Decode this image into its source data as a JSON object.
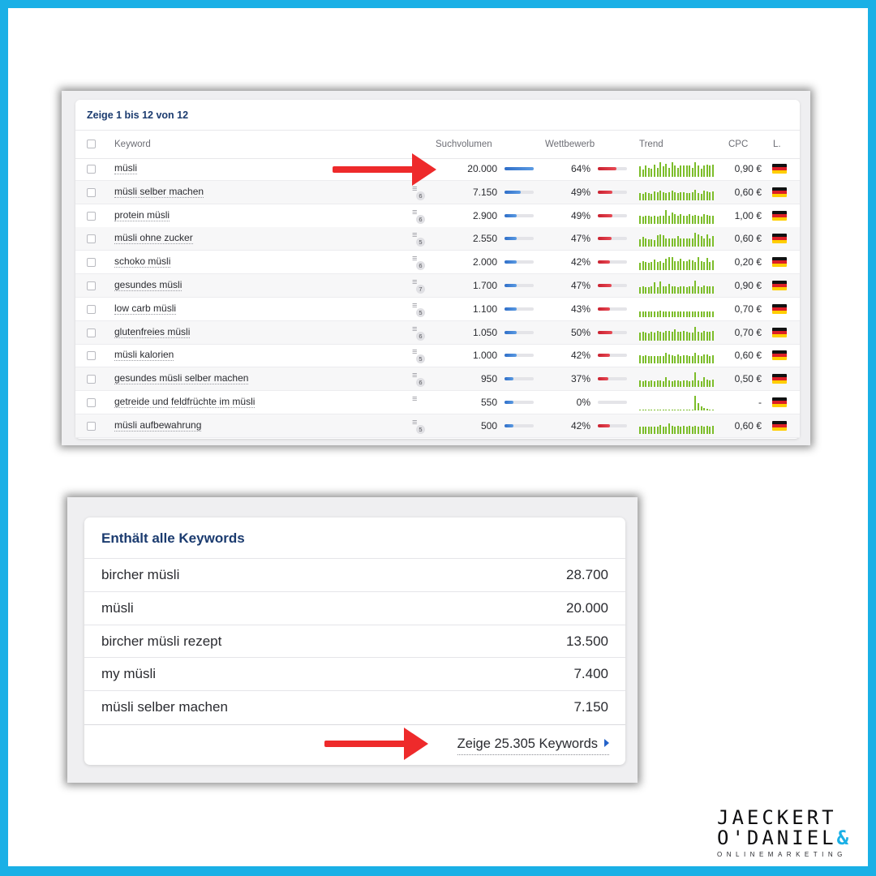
{
  "top_table": {
    "title": "Zeige 1 bis 12 von 12",
    "columns": {
      "keyword": "Keyword",
      "volume": "Suchvolumen",
      "competition": "Wettbewerb",
      "trend": "Trend",
      "cpc": "CPC",
      "lang": "L."
    },
    "rows": [
      {
        "keyword": "müsli",
        "serp_badge": "",
        "volume": "20.000",
        "volume_fraction": 1.0,
        "competition": "64%",
        "competition_fraction": 0.64,
        "cpc": "0,90 €",
        "trend": [
          0.7,
          0.5,
          0.75,
          0.6,
          0.55,
          0.8,
          0.6,
          0.95,
          0.7,
          0.85,
          0.6,
          0.95,
          0.75,
          0.6,
          0.75,
          0.75,
          0.75,
          0.75,
          0.6,
          0.95,
          0.75,
          0.55,
          0.75,
          0.8,
          0.75,
          0.8
        ]
      },
      {
        "keyword": "müsli selber machen",
        "serp_badge": "6",
        "volume": "7.150",
        "volume_fraction": 0.55,
        "competition": "49%",
        "competition_fraction": 0.49,
        "cpc": "0,60 €",
        "trend": [
          0.45,
          0.4,
          0.5,
          0.45,
          0.4,
          0.55,
          0.5,
          0.6,
          0.5,
          0.45,
          0.5,
          0.6,
          0.5,
          0.45,
          0.5,
          0.5,
          0.45,
          0.45,
          0.5,
          0.7,
          0.45,
          0.4,
          0.6,
          0.55,
          0.5,
          0.55
        ]
      },
      {
        "keyword": "protein müsli",
        "serp_badge": "6",
        "volume": "2.900",
        "volume_fraction": 0.42,
        "competition": "49%",
        "competition_fraction": 0.49,
        "cpc": "1,00 €",
        "trend": [
          0.5,
          0.45,
          0.5,
          0.5,
          0.45,
          0.5,
          0.45,
          0.5,
          0.5,
          0.85,
          0.5,
          0.7,
          0.6,
          0.5,
          0.6,
          0.5,
          0.5,
          0.6,
          0.5,
          0.55,
          0.5,
          0.45,
          0.6,
          0.55,
          0.5,
          0.5
        ]
      },
      {
        "keyword": "müsli ohne zucker",
        "serp_badge": "5",
        "volume": "2.550",
        "volume_fraction": 0.42,
        "competition": "47%",
        "competition_fraction": 0.47,
        "cpc": "0,60 €",
        "trend": [
          0.5,
          0.65,
          0.55,
          0.5,
          0.5,
          0.45,
          0.75,
          0.8,
          0.75,
          0.55,
          0.55,
          0.55,
          0.55,
          0.7,
          0.55,
          0.55,
          0.55,
          0.55,
          0.55,
          0.9,
          0.8,
          0.7,
          0.55,
          0.8,
          0.55,
          0.7
        ]
      },
      {
        "keyword": "schoko müsli",
        "serp_badge": "6",
        "volume": "2.000",
        "volume_fraction": 0.42,
        "competition": "42%",
        "competition_fraction": 0.42,
        "cpc": "0,20 €",
        "trend": [
          0.5,
          0.6,
          0.55,
          0.5,
          0.55,
          0.7,
          0.55,
          0.6,
          0.5,
          0.75,
          0.85,
          0.85,
          0.6,
          0.6,
          0.75,
          0.6,
          0.6,
          0.7,
          0.65,
          0.55,
          0.85,
          0.6,
          0.55,
          0.8,
          0.55,
          0.65
        ]
      },
      {
        "keyword": "gesundes müsli",
        "serp_badge": "7",
        "volume": "1.700",
        "volume_fraction": 0.42,
        "competition": "47%",
        "competition_fraction": 0.47,
        "cpc": "0,90 €",
        "trend": [
          0.4,
          0.45,
          0.4,
          0.4,
          0.45,
          0.75,
          0.4,
          0.8,
          0.45,
          0.45,
          0.65,
          0.45,
          0.45,
          0.4,
          0.45,
          0.45,
          0.4,
          0.45,
          0.45,
          0.85,
          0.45,
          0.4,
          0.55,
          0.5,
          0.45,
          0.45
        ]
      },
      {
        "keyword": "low carb müsli",
        "serp_badge": "5",
        "volume": "1.100",
        "volume_fraction": 0.42,
        "competition": "43%",
        "competition_fraction": 0.43,
        "cpc": "0,70 €",
        "trend": [
          0.35,
          0.35,
          0.35,
          0.35,
          0.35,
          0.35,
          0.35,
          0.4,
          0.35,
          0.35,
          0.35,
          0.35,
          0.35,
          0.35,
          0.35,
          0.35,
          0.35,
          0.35,
          0.35,
          0.35,
          0.35,
          0.35,
          0.35,
          0.35,
          0.35,
          0.35
        ]
      },
      {
        "keyword": "glutenfreies müsli",
        "serp_badge": "6",
        "volume": "1.050",
        "volume_fraction": 0.42,
        "competition": "50%",
        "competition_fraction": 0.5,
        "cpc": "0,70 €",
        "trend": [
          0.5,
          0.55,
          0.5,
          0.45,
          0.55,
          0.5,
          0.6,
          0.55,
          0.5,
          0.6,
          0.6,
          0.55,
          0.7,
          0.55,
          0.55,
          0.6,
          0.55,
          0.5,
          0.5,
          0.85,
          0.55,
          0.5,
          0.6,
          0.55,
          0.55,
          0.6
        ]
      },
      {
        "keyword": "müsli kalorien",
        "serp_badge": "5",
        "volume": "1.000",
        "volume_fraction": 0.42,
        "competition": "42%",
        "competition_fraction": 0.42,
        "cpc": "0,60 €",
        "trend": [
          0.55,
          0.5,
          0.55,
          0.5,
          0.5,
          0.5,
          0.5,
          0.5,
          0.5,
          0.7,
          0.6,
          0.55,
          0.5,
          0.6,
          0.5,
          0.55,
          0.55,
          0.5,
          0.5,
          0.7,
          0.55,
          0.5,
          0.6,
          0.6,
          0.5,
          0.55
        ]
      },
      {
        "keyword": "gesundes müsli selber machen",
        "serp_badge": "6",
        "volume": "950",
        "volume_fraction": 0.3,
        "competition": "37%",
        "competition_fraction": 0.37,
        "cpc": "0,50 €",
        "trend": [
          0.45,
          0.4,
          0.45,
          0.4,
          0.45,
          0.4,
          0.45,
          0.45,
          0.4,
          0.65,
          0.45,
          0.4,
          0.45,
          0.45,
          0.4,
          0.45,
          0.45,
          0.4,
          0.45,
          0.95,
          0.45,
          0.4,
          0.65,
          0.5,
          0.45,
          0.5
        ]
      },
      {
        "keyword": "getreide und feldfrüchte im müsli",
        "serp_badge": "",
        "volume": "550",
        "volume_fraction": 0.3,
        "competition": "0%",
        "competition_fraction": 0.0,
        "cpc": "-",
        "trend": [
          0.05,
          0.05,
          0.05,
          0.05,
          0.05,
          0.05,
          0.05,
          0.05,
          0.05,
          0.05,
          0.05,
          0.05,
          0.05,
          0.05,
          0.05,
          0.05,
          0.05,
          0.05,
          0.05,
          0.95,
          0.5,
          0.25,
          0.15,
          0.1,
          0.05,
          0.05
        ]
      },
      {
        "keyword": "müsli aufbewahrung",
        "serp_badge": "5",
        "volume": "500",
        "volume_fraction": 0.3,
        "competition": "42%",
        "competition_fraction": 0.42,
        "cpc": "0,60 €",
        "trend": [
          0.45,
          0.45,
          0.45,
          0.45,
          0.45,
          0.45,
          0.45,
          0.55,
          0.45,
          0.45,
          0.65,
          0.5,
          0.45,
          0.5,
          0.45,
          0.5,
          0.45,
          0.5,
          0.45,
          0.5,
          0.45,
          0.5,
          0.45,
          0.5,
          0.45,
          0.5
        ]
      }
    ]
  },
  "keywords_card": {
    "title": "Enthält alle Keywords",
    "rows": [
      {
        "keyword": "bircher müsli",
        "value": "28.700"
      },
      {
        "keyword": "müsli",
        "value": "20.000"
      },
      {
        "keyword": "bircher müsli rezept",
        "value": "13.500"
      },
      {
        "keyword": "my müsli",
        "value": "7.400"
      },
      {
        "keyword": "müsli selber machen",
        "value": "7.150"
      }
    ],
    "more_link": "Zeige 25.305 Keywords"
  },
  "logo": {
    "line1": "JAECKERT",
    "line2": "O'DANIEL",
    "amp": "&",
    "line3": "ONLINEMARKETING"
  },
  "colors": {
    "frame": "#1ab0e6",
    "arrow": "#ee2a2b",
    "trend": "#7cbd2a",
    "volume_bar": "#2f6ec8",
    "competition_bar": "#c9202f",
    "title": "#1b3b6f"
  }
}
